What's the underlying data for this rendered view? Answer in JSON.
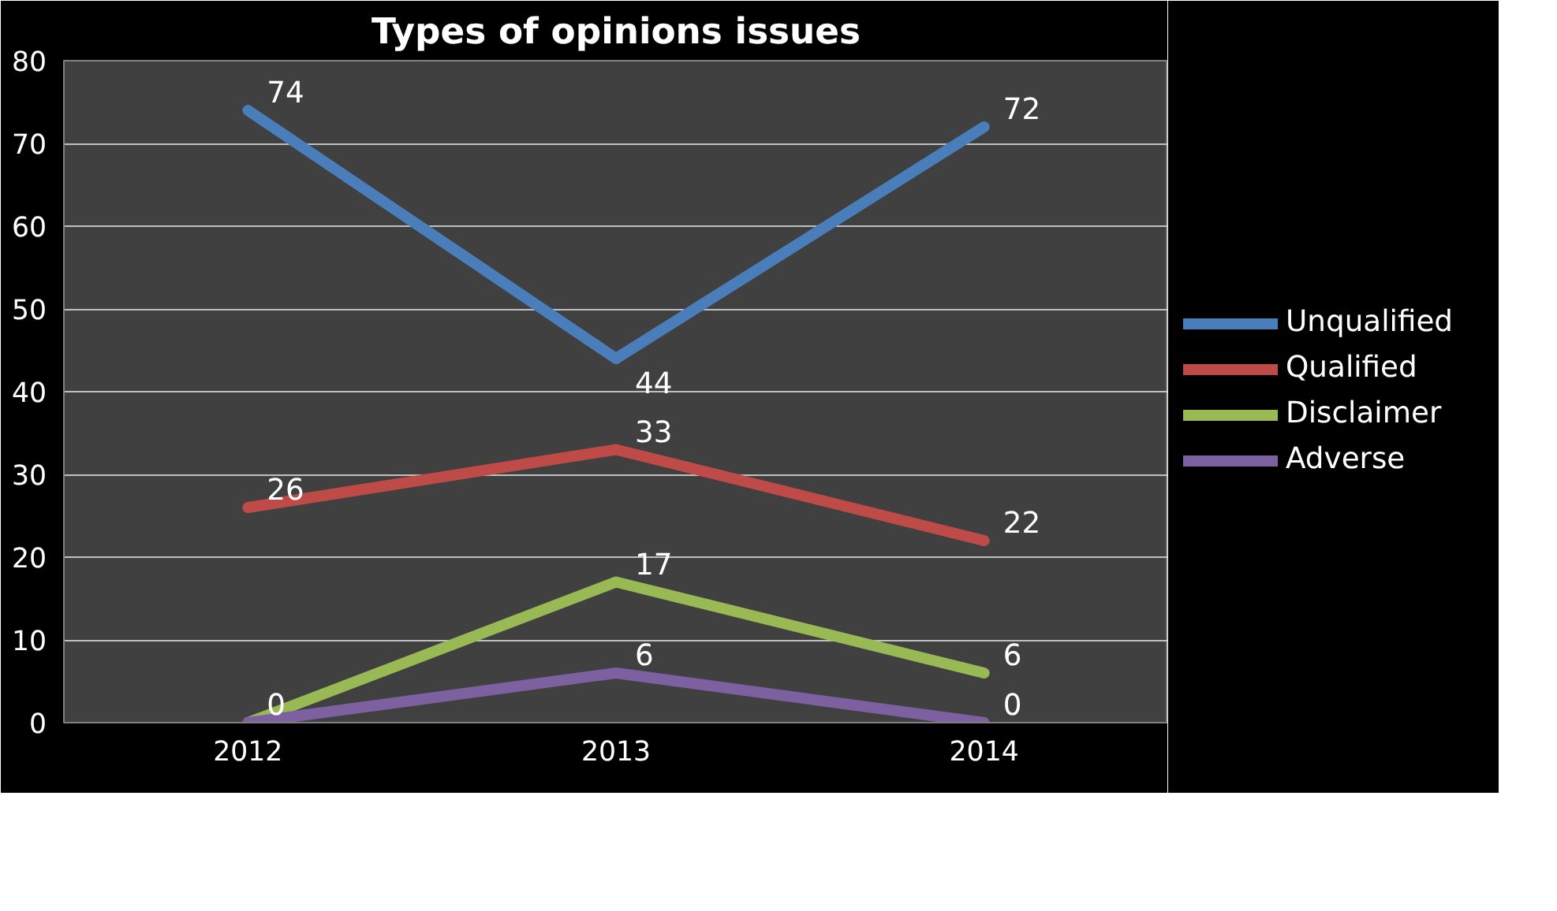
{
  "chart_data": {
    "type": "line",
    "title": "Types of opinions issues",
    "categories": [
      "2012",
      "2013",
      "2014"
    ],
    "series": [
      {
        "name": "Unqualified",
        "color": "#4a7ebb",
        "values": [
          74,
          44,
          72
        ]
      },
      {
        "name": "Qualified",
        "color": "#be4b48",
        "values": [
          26,
          33,
          22
        ]
      },
      {
        "name": "Disclaimer",
        "color": "#98b954",
        "values": [
          0,
          17,
          6
        ],
        "value_labels": [
          null,
          "17",
          "6"
        ]
      },
      {
        "name": "Adverse",
        "color": "#7d60a0",
        "values": [
          0,
          6,
          0
        ]
      }
    ],
    "ylim": [
      0,
      80
    ],
    "yticks": [
      0,
      10,
      20,
      30,
      40,
      50,
      60,
      70,
      80
    ],
    "grid": "y",
    "legend": "right",
    "data_labels": true,
    "marker": "none",
    "line_style": "solid"
  }
}
